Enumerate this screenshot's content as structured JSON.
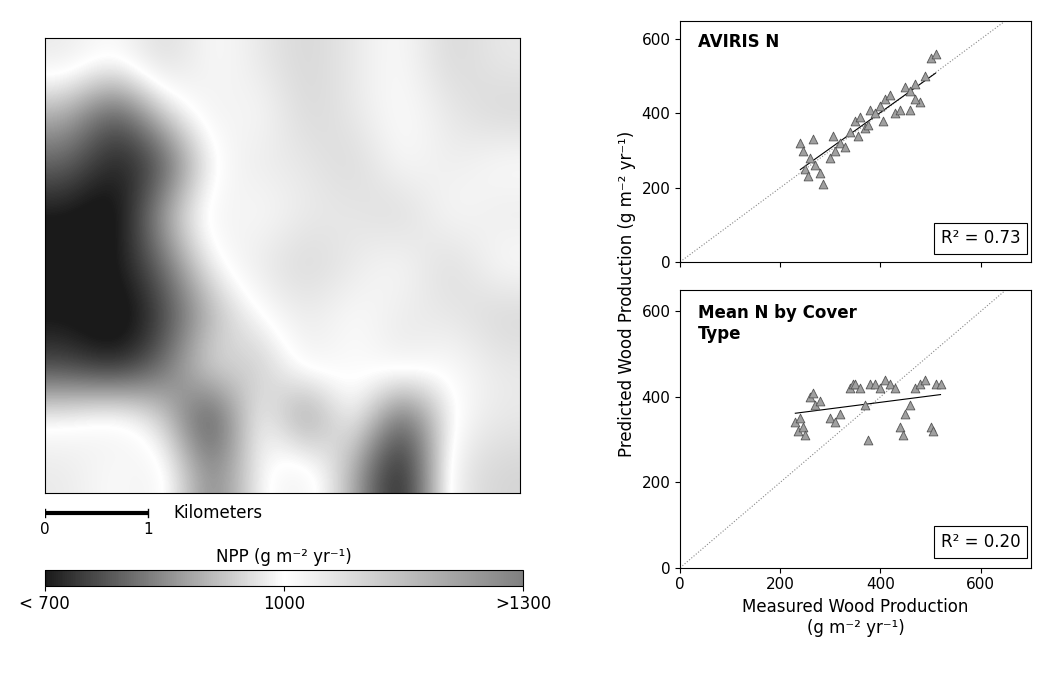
{
  "chart_data": [
    {
      "type": "heatmap",
      "xlim": [
        0,
        4.6
      ],
      "ylim": [
        0,
        4.5
      ],
      "tick_labels": false,
      "cells": [
        [
          1050,
          1000,
          1100,
          1000,
          1050,
          1100,
          1050,
          1000,
          1100,
          1050
        ],
        [
          900,
          750,
          950,
          1050,
          1000,
          1100,
          1050,
          1000,
          1050,
          1100
        ],
        [
          800,
          700,
          750,
          1000,
          1050,
          1050,
          1100,
          1000,
          1050,
          1000
        ],
        [
          700,
          650,
          900,
          1050,
          1000,
          1050,
          1050,
          1100,
          1000,
          1050
        ],
        [
          650,
          700,
          800,
          1000,
          1050,
          1100,
          1050,
          1000,
          1100,
          1000
        ],
        [
          700,
          650,
          750,
          900,
          1000,
          1050,
          1000,
          1050,
          1050,
          1100
        ],
        [
          750,
          700,
          800,
          1000,
          900,
          1050,
          1000,
          1050,
          1000,
          1050
        ],
        [
          1000,
          1050,
          950,
          700,
          1050,
          800,
          1050,
          750,
          1000,
          1050
        ],
        [
          1050,
          1000,
          1050,
          800,
          1000,
          1050,
          900,
          650,
          1050,
          1100
        ]
      ],
      "scale_bar": {
        "label": "Kilometers",
        "ticks": [
          0,
          1
        ]
      },
      "colorbar": {
        "title": "NPP (g m⁻² yr⁻¹)",
        "range": [
          700,
          1300
        ],
        "ticks": [
          {
            "value": 700,
            "label": "< 700"
          },
          1000,
          {
            "value": 1300,
            "label": ">1300"
          }
        ]
      }
    },
    {
      "type": "scatter",
      "title": "AVIRIS N",
      "annotation": "R² = 0.73",
      "y_label": "Predicted Wood Production (g m⁻² yr⁻¹)",
      "marker": "triangle",
      "color": "#a0a0a0",
      "grid": false,
      "tick_labels": "y",
      "xlim": [
        0,
        700
      ],
      "ylim": [
        0,
        650
      ],
      "xticks": [
        0,
        200,
        400,
        600
      ],
      "yticks": [
        0,
        200,
        400,
        600
      ],
      "x": [
        240,
        245,
        250,
        255,
        260,
        265,
        270,
        280,
        285,
        300,
        305,
        310,
        320,
        330,
        340,
        350,
        355,
        360,
        370,
        375,
        380,
        390,
        400,
        405,
        410,
        420,
        430,
        440,
        450,
        460,
        470,
        480,
        490,
        500,
        510,
        470,
        460
      ],
      "y": [
        320,
        300,
        250,
        230,
        280,
        330,
        260,
        240,
        210,
        280,
        340,
        300,
        320,
        310,
        350,
        380,
        340,
        390,
        360,
        370,
        410,
        400,
        420,
        380,
        440,
        450,
        400,
        410,
        470,
        460,
        480,
        430,
        500,
        550,
        560,
        440,
        410
      ]
    },
    {
      "type": "scatter",
      "title": "Mean N by Cover\nType",
      "annotation": "R² = 0.20",
      "x_label": "Measured Wood Production\n(g m⁻² yr⁻¹)",
      "marker": "triangle",
      "color": "#a0a0a0",
      "grid": false,
      "xlim": [
        0,
        700
      ],
      "ylim": [
        0,
        650
      ],
      "xticks": [
        0,
        200,
        400,
        600
      ],
      "yticks": [
        0,
        200,
        400,
        600
      ],
      "x": [
        230,
        235,
        240,
        245,
        250,
        260,
        265,
        270,
        280,
        300,
        310,
        320,
        340,
        345,
        350,
        360,
        370,
        375,
        380,
        390,
        400,
        410,
        420,
        430,
        440,
        445,
        450,
        460,
        470,
        480,
        490,
        500,
        505,
        510,
        520
      ],
      "y": [
        340,
        320,
        350,
        330,
        310,
        400,
        410,
        380,
        390,
        350,
        340,
        360,
        420,
        430,
        430,
        420,
        380,
        300,
        430,
        430,
        420,
        440,
        430,
        420,
        330,
        310,
        360,
        380,
        420,
        430,
        440,
        330,
        320,
        430,
        430
      ]
    }
  ]
}
